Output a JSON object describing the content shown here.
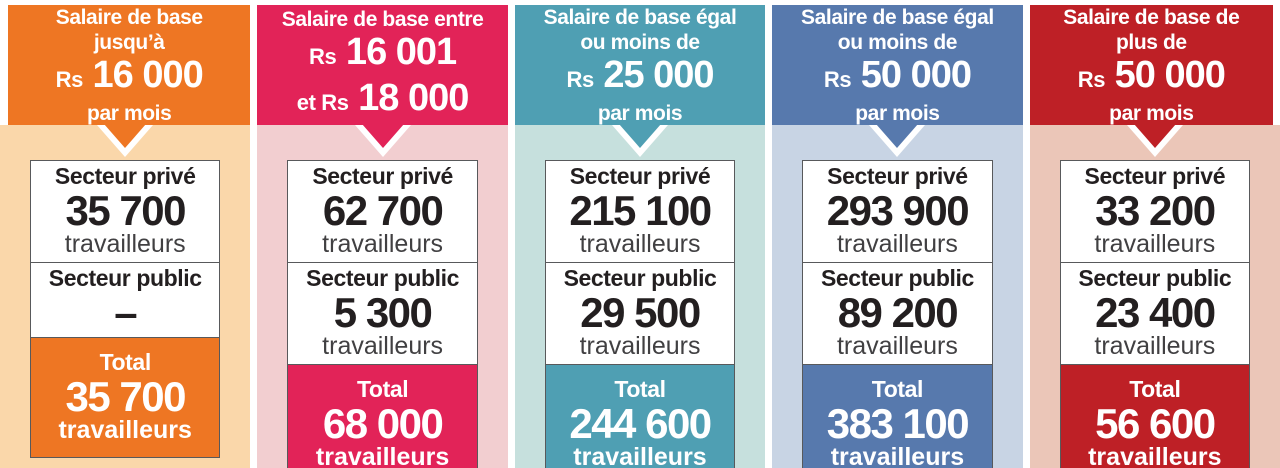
{
  "columns": [
    {
      "name": "bracket-up-to-16000",
      "accent_color": "#EE7623",
      "bg_color": "#FAD7AA",
      "header_lines": [
        {
          "text": "Salaire de base"
        },
        {
          "text": "jusqu’à"
        },
        {
          "pre": "Rs",
          "big": "16 000"
        },
        {
          "text": "par mois"
        }
      ],
      "private": {
        "label": "Secteur privé",
        "value": "35 700",
        "unit": "travailleurs"
      },
      "public": {
        "label": "Secteur public",
        "value": "–",
        "unit": ""
      },
      "total": {
        "label": "Total",
        "value": "35 700",
        "unit": "travailleurs"
      }
    },
    {
      "name": "bracket-16001-18000",
      "accent_color": "#E22358",
      "bg_color": "#F2CED0",
      "header_lines": [
        {
          "text": "Salaire de base entre"
        },
        {
          "pre": "Rs",
          "big": "16 001"
        },
        {
          "pre": "et Rs",
          "big": "18 000"
        }
      ],
      "private": {
        "label": "Secteur privé",
        "value": "62 700",
        "unit": "travailleurs"
      },
      "public": {
        "label": "Secteur public",
        "value": "5 300",
        "unit": "travailleurs"
      },
      "total": {
        "label": "Total",
        "value": "68 000",
        "unit": "travailleurs"
      }
    },
    {
      "name": "bracket-up-to-25000",
      "accent_color": "#4F9FB3",
      "bg_color": "#C6E0DD",
      "header_lines": [
        {
          "text": "Salaire de base égal"
        },
        {
          "text": "ou moins de"
        },
        {
          "pre": "Rs",
          "big": "25 000"
        },
        {
          "text": "par mois"
        }
      ],
      "private": {
        "label": "Secteur privé",
        "value": "215 100",
        "unit": "travailleurs"
      },
      "public": {
        "label": "Secteur public",
        "value": "29 500",
        "unit": "travailleurs"
      },
      "total": {
        "label": "Total",
        "value": "244 600",
        "unit": "travailleurs"
      }
    },
    {
      "name": "bracket-up-to-50000",
      "accent_color": "#5779AD",
      "bg_color": "#C8D4E4",
      "header_lines": [
        {
          "text": "Salaire de base égal"
        },
        {
          "text": "ou moins de"
        },
        {
          "pre": "Rs",
          "big": "50 000"
        },
        {
          "text": "par mois"
        }
      ],
      "private": {
        "label": "Secteur privé",
        "value": "293 900",
        "unit": "travailleurs"
      },
      "public": {
        "label": "Secteur public",
        "value": "89 200",
        "unit": "travailleurs"
      },
      "total": {
        "label": "Total",
        "value": "383 100",
        "unit": "travailleurs"
      }
    },
    {
      "name": "bracket-above-50000",
      "accent_color": "#BE2026",
      "bg_color": "#EBC6B8",
      "header_lines": [
        {
          "text": "Salaire de base de"
        },
        {
          "text": "plus de"
        },
        {
          "pre": "Rs",
          "big": "50 000"
        },
        {
          "text": "par mois"
        }
      ],
      "private": {
        "label": "Secteur privé",
        "value": "33 200",
        "unit": "travailleurs"
      },
      "public": {
        "label": "Secteur public",
        "value": "23 400",
        "unit": "travailleurs"
      },
      "total": {
        "label": "Total",
        "value": "56 600",
        "unit": "travailleurs"
      }
    }
  ],
  "chart_data": {
    "type": "table",
    "title": "",
    "categories": [
      "Salaire de base jusqu’à Rs 16 000 par mois",
      "Salaire de base entre Rs 16 001 et Rs 18 000",
      "Salaire de base égal ou moins de Rs 25 000 par mois",
      "Salaire de base égal ou moins de Rs 50 000 par mois",
      "Salaire de base de plus de Rs 50 000 par mois"
    ],
    "series": [
      {
        "name": "Secteur privé (travailleurs)",
        "values": [
          35700,
          62700,
          215100,
          293900,
          33200
        ]
      },
      {
        "name": "Secteur public (travailleurs)",
        "values": [
          null,
          5300,
          29500,
          89200,
          23400
        ]
      },
      {
        "name": "Total (travailleurs)",
        "values": [
          35700,
          68000,
          244600,
          383100,
          56600
        ]
      }
    ],
    "unit_label": "travailleurs",
    "currency_prefix": "Rs"
  }
}
